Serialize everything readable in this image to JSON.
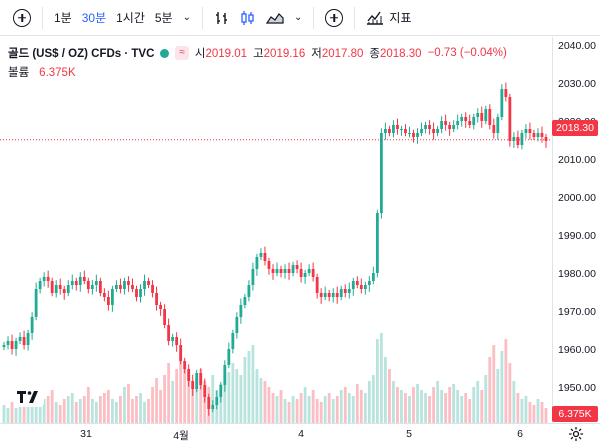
{
  "toolbar": {
    "intervals": [
      "1분",
      "30분",
      "1시간",
      "5분"
    ],
    "active_interval_index": 1,
    "indicators_label": "지표"
  },
  "legend": {
    "symbol": "골드 (US$ / OZ) CFDs · TVC",
    "approx_badge": "≈",
    "open_label": "시",
    "open": "2019.01",
    "high_label": "고",
    "high": "2019.16",
    "low_label": "저",
    "low": "2017.80",
    "close_label": "종",
    "close": "2018.30",
    "change": "−0.73 (−0.04%)",
    "volume_label": "볼륨",
    "volume": "6.375K"
  },
  "price_scale": {
    "ticks": [
      "2040.00",
      "2030.00",
      "2020.00",
      "2010.00",
      "2000.00",
      "1990.00",
      "1980.00",
      "1970.00",
      "1960.00",
      "1950.00"
    ],
    "current_price": "2018.30",
    "current_volume": "6.375K"
  },
  "time_scale": {
    "ticks": [
      "31",
      "4월",
      "4",
      "5",
      "6"
    ]
  },
  "colors": {
    "up": "#22ab94",
    "down": "#f23645",
    "accent": "#2962ff"
  },
  "chart_data": {
    "type": "candlestick",
    "ylim": [
      1947,
      2042
    ],
    "closes": [
      1967,
      1968,
      1966,
      1968,
      1969,
      1967,
      1970,
      1974,
      1981,
      1983,
      1984,
      1983,
      1980,
      1982,
      1981,
      1980,
      1982,
      1983,
      1982,
      1984,
      1983,
      1981,
      1982,
      1983,
      1980,
      1979,
      1977,
      1981,
      1982,
      1981,
      1983,
      1982,
      1981,
      1979,
      1981,
      1983,
      1982,
      1980,
      1977,
      1976,
      1972,
      1968,
      1969,
      1967,
      1963,
      1961,
      1958,
      1956,
      1960,
      1957,
      1954,
      1951,
      1952,
      1954,
      1957,
      1962,
      1966,
      1970,
      1974,
      1977,
      1979,
      1982,
      1986,
      1989,
      1990,
      1988,
      1986,
      1985,
      1986,
      1985,
      1986,
      1985,
      1987,
      1986,
      1984,
      1985,
      1986,
      1984,
      1980,
      1979,
      1980,
      1979,
      1980,
      1979,
      1981,
      1980,
      1981,
      1983,
      1982,
      1981,
      1982,
      1983,
      1985,
      2000,
      2020,
      2021,
      2020,
      2022,
      2021,
      2021,
      2020,
      2020,
      2019,
      2020,
      2021,
      2022,
      2021,
      2020,
      2021,
      2023,
      2022,
      2021,
      2022,
      2023,
      2024,
      2023,
      2022,
      2024,
      2025,
      2023,
      2026,
      2022,
      2020,
      2024,
      2031,
      2029,
      2018,
      2019,
      2017,
      2020,
      2021,
      2020,
      2019,
      2020,
      2019,
      2018
    ],
    "volumes": [
      6,
      5,
      7,
      5,
      6,
      8,
      9,
      7,
      12,
      10,
      8,
      9,
      11,
      7,
      6,
      8,
      9,
      10,
      7,
      8,
      9,
      12,
      8,
      7,
      9,
      10,
      11,
      8,
      7,
      9,
      12,
      13,
      8,
      9,
      10,
      7,
      8,
      12,
      15,
      11,
      16,
      20,
      14,
      18,
      22,
      19,
      17,
      13,
      15,
      18,
      14,
      12,
      16,
      11,
      13,
      15,
      17,
      20,
      18,
      16,
      22,
      24,
      26,
      18,
      15,
      14,
      12,
      10,
      9,
      11,
      8,
      7,
      9,
      8,
      10,
      12,
      9,
      11,
      8,
      7,
      9,
      10,
      8,
      9,
      11,
      12,
      10,
      9,
      13,
      11,
      10,
      14,
      16,
      28,
      30,
      22,
      18,
      14,
      12,
      11,
      10,
      9,
      12,
      13,
      11,
      10,
      9,
      12,
      14,
      11,
      10,
      12,
      13,
      11,
      9,
      10,
      8,
      12,
      14,
      11,
      16,
      22,
      26,
      18,
      24,
      28,
      20,
      14,
      10,
      8,
      9,
      7,
      6,
      8,
      7,
      5
    ]
  }
}
